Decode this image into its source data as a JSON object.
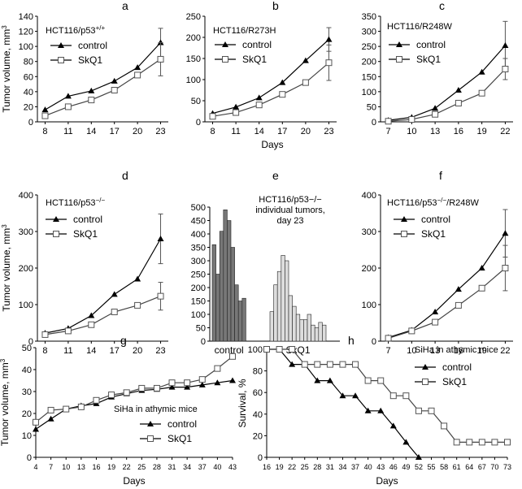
{
  "chart_data": [
    {
      "panel": "a",
      "type": "line",
      "inset_title": "HCT116/p53",
      "inset_title_sup": "+/+",
      "ylabel": "Tumor volume, mm",
      "ylabel_sup": "3",
      "xlabel": "",
      "x": [
        8,
        11,
        14,
        17,
        20,
        23
      ],
      "ylim": [
        0,
        140
      ],
      "y_ticks": [
        0,
        20,
        40,
        60,
        80,
        100,
        120,
        140
      ],
      "series": [
        {
          "name": "control",
          "marker": "triangle",
          "values": [
            16,
            34,
            41,
            54,
            72,
            105
          ],
          "err": [
            0,
            0,
            0,
            0,
            0,
            19
          ]
        },
        {
          "name": "SkQ1",
          "marker": "square",
          "values": [
            8,
            20,
            29,
            42,
            62,
            83
          ],
          "err": [
            0,
            0,
            0,
            0,
            0,
            22
          ]
        }
      ]
    },
    {
      "panel": "b",
      "type": "line",
      "inset_title": "HCT116/R273H",
      "inset_title_sup": "",
      "ylabel": "",
      "ylabel_sup": "",
      "xlabel": "Days",
      "x": [
        8,
        11,
        14,
        17,
        20,
        23
      ],
      "ylim": [
        0,
        250
      ],
      "y_ticks": [
        0,
        50,
        100,
        150,
        200,
        250
      ],
      "series": [
        {
          "name": "control",
          "marker": "triangle",
          "values": [
            20,
            35,
            57,
            93,
            145,
            195
          ],
          "err": [
            0,
            0,
            0,
            0,
            0,
            28
          ]
        },
        {
          "name": "SkQ1",
          "marker": "square",
          "values": [
            13,
            22,
            40,
            65,
            93,
            140
          ],
          "err": [
            0,
            0,
            0,
            0,
            0,
            42
          ]
        }
      ]
    },
    {
      "panel": "c",
      "type": "line",
      "inset_title": "HCT116/R248W",
      "inset_title_sup": "",
      "ylabel": "",
      "ylabel_sup": "",
      "xlabel": "",
      "x": [
        7,
        10,
        13,
        16,
        19,
        22
      ],
      "ylim": [
        0,
        350
      ],
      "y_ticks": [
        0,
        50,
        100,
        150,
        200,
        250,
        300,
        350
      ],
      "series": [
        {
          "name": "control",
          "marker": "triangle",
          "values": [
            5,
            15,
            45,
            105,
            165,
            253
          ],
          "err": [
            0,
            0,
            0,
            0,
            0,
            80
          ]
        },
        {
          "name": "SkQ1",
          "marker": "square",
          "values": [
            2,
            8,
            25,
            62,
            95,
            175
          ],
          "err": [
            0,
            0,
            0,
            0,
            0,
            35
          ]
        }
      ]
    },
    {
      "panel": "d",
      "type": "line",
      "inset_title": "HCT116/p53",
      "inset_title_sup": "−/−",
      "ylabel": "Tumor volume, mm",
      "ylabel_sup": "3",
      "xlabel": "",
      "x": [
        8,
        11,
        14,
        17,
        20,
        23
      ],
      "ylim": [
        0,
        400
      ],
      "y_ticks": [
        0,
        100,
        200,
        300,
        400
      ],
      "series": [
        {
          "name": "control",
          "marker": "triangle",
          "values": [
            22,
            35,
            70,
            128,
            170,
            280
          ],
          "err": [
            0,
            0,
            0,
            0,
            0,
            68
          ]
        },
        {
          "name": "SkQ1",
          "marker": "square",
          "values": [
            18,
            28,
            45,
            80,
            98,
            123
          ],
          "err": [
            0,
            0,
            0,
            0,
            0,
            38
          ]
        }
      ]
    },
    {
      "panel": "e",
      "type": "bar",
      "inset_title_lines": [
        "HCT116/p53−/−",
        "individual tumors,",
        "day 23"
      ],
      "ylim": [
        0,
        500
      ],
      "y_ticks": [
        0,
        50,
        100,
        150,
        200,
        250,
        300,
        350,
        400,
        450,
        500
      ],
      "groups": [
        {
          "name": "control",
          "values": [
            360,
            250,
            410,
            490,
            450,
            350,
            210,
            150,
            160
          ]
        },
        {
          "name": "SkQ1",
          "values": [
            110,
            210,
            260,
            320,
            300,
            170,
            130,
            100,
            80,
            80,
            100,
            60,
            50,
            70,
            60
          ]
        }
      ]
    },
    {
      "panel": "f",
      "type": "line",
      "inset_title": "HCT116/p53",
      "inset_title_sup": "−/−",
      "inset_title_suffix": "/R248W",
      "ylabel": "",
      "ylabel_sup": "",
      "xlabel": "",
      "x": [
        7,
        10,
        13,
        16,
        19,
        22
      ],
      "ylim": [
        0,
        400
      ],
      "y_ticks": [
        0,
        100,
        200,
        300,
        400
      ],
      "series": [
        {
          "name": "control",
          "marker": "triangle",
          "values": [
            10,
            30,
            80,
            142,
            200,
            295
          ],
          "err": [
            0,
            0,
            0,
            0,
            0,
            65
          ]
        },
        {
          "name": "SkQ1",
          "marker": "square",
          "values": [
            8,
            28,
            52,
            98,
            145,
            200
          ],
          "err": [
            0,
            0,
            0,
            0,
            0,
            62
          ]
        }
      ]
    },
    {
      "panel": "g",
      "type": "line",
      "inset_title": "SiHa in athymic mice",
      "inset_title_sup": "",
      "ylabel": "Tumor volume, mm",
      "ylabel_sup": "3",
      "xlabel": "Days",
      "x": [
        4,
        7,
        10,
        13,
        16,
        19,
        22,
        25,
        28,
        31,
        34,
        37,
        40,
        43
      ],
      "ylim": [
        0,
        50
      ],
      "y_ticks": [
        0,
        10,
        20,
        30,
        40,
        50
      ],
      "series": [
        {
          "name": "control",
          "marker": "triangle",
          "values": [
            12.8,
            17.5,
            22,
            23.5,
            24.5,
            27.5,
            29,
            30.5,
            31,
            32,
            32,
            33,
            34,
            35
          ]
        },
        {
          "name": "SkQ1",
          "marker": "square",
          "values": [
            16,
            21.5,
            22,
            23,
            26,
            28.5,
            29.5,
            31.5,
            31.5,
            34,
            34,
            35.5,
            40.5,
            46
          ]
        }
      ]
    },
    {
      "panel": "h",
      "type": "step",
      "inset_title": "SiHa in athymic mice",
      "inset_title_sup": "",
      "ylabel": "Survival, %",
      "ylabel_sup": "",
      "xlabel": "Days",
      "x_ticks": [
        16,
        19,
        22,
        25,
        28,
        31,
        34,
        37,
        40,
        43,
        46,
        49,
        52,
        55,
        58,
        61,
        64,
        67,
        70,
        73
      ],
      "xlim": [
        16,
        73
      ],
      "ylim": [
        0,
        100
      ],
      "y_ticks": [
        0,
        20,
        40,
        60,
        80,
        100
      ],
      "series": [
        {
          "name": "control",
          "marker": "triangle",
          "points": [
            [
              16,
              100
            ],
            [
              19,
              100
            ],
            [
              22,
              86
            ],
            [
              25,
              86
            ],
            [
              28,
              71
            ],
            [
              31,
              71
            ],
            [
              34,
              57
            ],
            [
              37,
              57
            ],
            [
              40,
              43
            ],
            [
              43,
              43
            ],
            [
              46,
              29
            ],
            [
              49,
              14
            ],
            [
              52,
              0
            ]
          ]
        },
        {
          "name": "SkQ1",
          "marker": "square",
          "points": [
            [
              16,
              100
            ],
            [
              19,
              100
            ],
            [
              22,
              100
            ],
            [
              25,
              86
            ],
            [
              28,
              86
            ],
            [
              31,
              86
            ],
            [
              34,
              86
            ],
            [
              37,
              86
            ],
            [
              40,
              71
            ],
            [
              43,
              71
            ],
            [
              46,
              57
            ],
            [
              49,
              57
            ],
            [
              52,
              43
            ],
            [
              55,
              43
            ],
            [
              58,
              29
            ],
            [
              61,
              14
            ],
            [
              64,
              14
            ],
            [
              67,
              14
            ],
            [
              70,
              14
            ],
            [
              73,
              14
            ]
          ]
        }
      ]
    }
  ]
}
